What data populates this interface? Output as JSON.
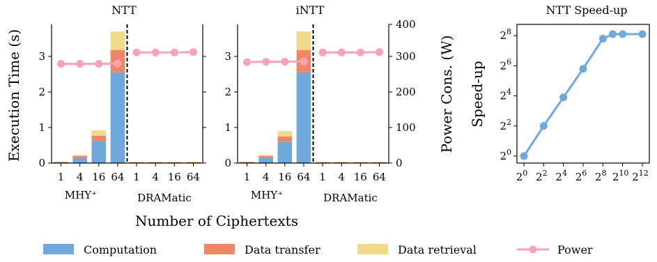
{
  "chart_data": [
    {
      "type": "bar",
      "title": "NTT",
      "ylabel": "Execution Time (s)",
      "ylim": [
        0,
        3.9
      ],
      "yticks": [
        "0",
        "1",
        "2",
        "3"
      ],
      "categories": [
        "1",
        "4",
        "16",
        "64",
        "1",
        "4",
        "16",
        "64"
      ],
      "groups": [
        "MHY⁺",
        "DRAMatic"
      ],
      "series": [
        {
          "name": "Computation",
          "values": [
            0.02,
            0.15,
            0.62,
            2.55,
            0.01,
            0.01,
            0.01,
            0.01
          ]
        },
        {
          "name": "Data transfer",
          "values": [
            0.01,
            0.05,
            0.15,
            0.63,
            0.01,
            0.01,
            0.01,
            0.01
          ]
        },
        {
          "name": "Data retrieval",
          "values": [
            0.01,
            0.03,
            0.15,
            0.52,
            0.02,
            0.02,
            0.02,
            0.02
          ]
        }
      ],
      "power_w": [
        279,
        279,
        279,
        280,
        311,
        311,
        311,
        312
      ]
    },
    {
      "type": "bar",
      "title": "iNTT",
      "ylim": [
        0,
        3.9
      ],
      "yticks": [
        "0",
        "1",
        "2",
        "3"
      ],
      "y2label": "Power Cons. (W)",
      "y2lim": [
        0,
        390
      ],
      "y2ticks": [
        "0",
        "100",
        "200",
        "300",
        "400"
      ],
      "categories": [
        "1",
        "4",
        "16",
        "64",
        "1",
        "4",
        "16",
        "64"
      ],
      "groups": [
        "MHY⁺",
        "DRAMatic"
      ],
      "series": [
        {
          "name": "Computation",
          "values": [
            0.02,
            0.15,
            0.6,
            2.55,
            0.01,
            0.01,
            0.01,
            0.01
          ]
        },
        {
          "name": "Data transfer",
          "values": [
            0.01,
            0.05,
            0.15,
            0.63,
            0.01,
            0.01,
            0.01,
            0.01
          ]
        },
        {
          "name": "Data retrieval",
          "values": [
            0.01,
            0.03,
            0.15,
            0.52,
            0.02,
            0.02,
            0.02,
            0.02
          ]
        }
      ],
      "power_w": [
        284,
        285,
        285,
        286,
        311,
        311,
        311,
        312
      ]
    },
    {
      "type": "line",
      "title": "NTT Speed-up",
      "ylabel": "Speed-up",
      "x_log2": [
        0,
        2,
        4,
        6,
        8,
        9,
        10,
        12
      ],
      "y_log2": [
        0,
        2,
        3.9,
        5.8,
        7.8,
        8.1,
        8.1,
        8.1
      ],
      "xticks": [
        {
          "base": "2",
          "exp": "0"
        },
        {
          "base": "2",
          "exp": "2"
        },
        {
          "base": "2",
          "exp": "4"
        },
        {
          "base": "2",
          "exp": "6"
        },
        {
          "base": "2",
          "exp": "8"
        },
        {
          "base": "2",
          "exp": "10"
        },
        {
          "base": "2",
          "exp": "12"
        }
      ],
      "yticks": [
        {
          "base": "2",
          "exp": "0"
        },
        {
          "base": "2",
          "exp": "2"
        },
        {
          "base": "2",
          "exp": "4"
        },
        {
          "base": "2",
          "exp": "6"
        },
        {
          "base": "2",
          "exp": "8"
        }
      ],
      "scale": "log2"
    }
  ],
  "xlabel": "Number of Ciphertexts",
  "legend": [
    "Computation",
    "Data transfer",
    "Data retrieval",
    "Power"
  ],
  "colors": {
    "computation": "#6fa8dc",
    "transfer": "#ef8766",
    "retrieval": "#efd98a",
    "power": "#f6a3b4",
    "speedup": "#6fa8dc"
  }
}
